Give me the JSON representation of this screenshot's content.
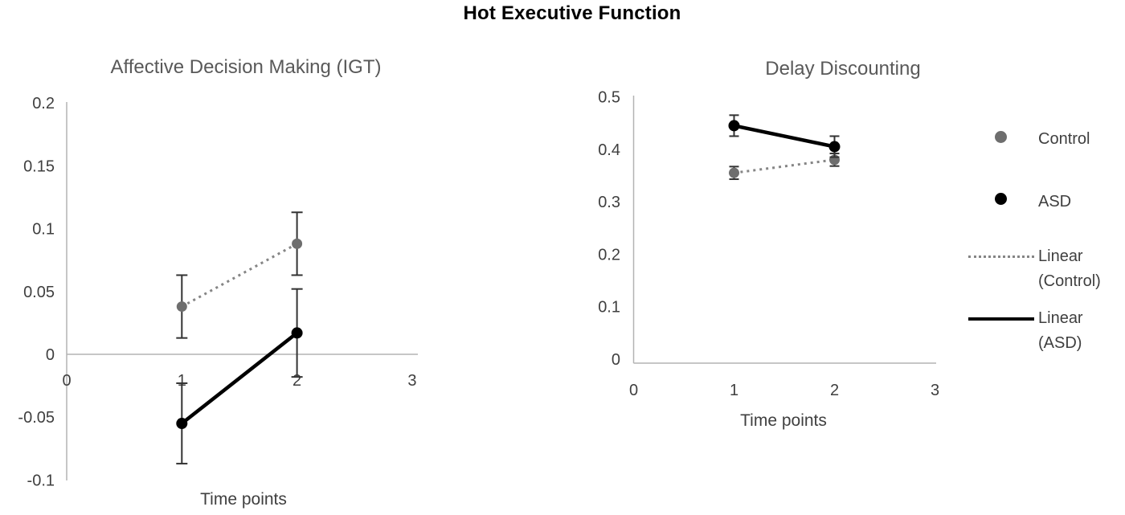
{
  "figure": {
    "title": "Hot Executive Function"
  },
  "legend": {
    "position": "right",
    "items": [
      {
        "label": "Control",
        "swatch": "dot",
        "color": "#6e6e6e"
      },
      {
        "label": "ASD",
        "swatch": "dot",
        "color": "#000000"
      },
      {
        "label": "Linear (Control)",
        "swatch": "dotted-line",
        "color": "#858585"
      },
      {
        "label": "Linear (ASD)",
        "swatch": "solid-line",
        "color": "#000000"
      }
    ]
  },
  "axis": {
    "line_color": "#b3b3b3",
    "tick_color": "#3f3f3f",
    "error_bar_color": "#333333"
  },
  "chart_data": [
    {
      "type": "line",
      "title": "Affective Decision Making (IGT)",
      "xlabel": "Time points",
      "x": [
        1,
        2
      ],
      "xtick_labels": [
        "0",
        "1",
        "2",
        "3"
      ],
      "xlim": [
        0,
        3
      ],
      "ylim": [
        -0.1,
        0.2
      ],
      "yticks": [
        0.2,
        0.15,
        0.1,
        0.05,
        0,
        -0.05,
        -0.1
      ],
      "ytick_labels": [
        "0.2",
        "0.15",
        "0.1",
        "0.05",
        "0",
        "-0.05",
        "-0.1"
      ],
      "grid": false,
      "series": [
        {
          "name": "Control",
          "values": [
            0.038,
            0.088
          ],
          "error": [
            0.025,
            0.025
          ],
          "marker": "circle",
          "marker_color": "#6e6e6e",
          "line_style": "dotted",
          "line_color": "#858585"
        },
        {
          "name": "ASD",
          "values": [
            -0.055,
            0.017
          ],
          "error": [
            0.032,
            0.035
          ],
          "marker": "circle",
          "marker_color": "#000000",
          "line_style": "solid",
          "line_color": "#000000"
        }
      ]
    },
    {
      "type": "line",
      "title": "Delay Discounting",
      "xlabel": "Time points",
      "x": [
        1,
        2
      ],
      "xtick_labels": [
        "0",
        "1",
        "2",
        "3"
      ],
      "xlim": [
        0,
        3
      ],
      "ylim": [
        0,
        0.5
      ],
      "yticks": [
        0.5,
        0.4,
        0.3,
        0.2,
        0.1,
        0
      ],
      "ytick_labels": [
        "0.5",
        "0.4",
        "0.3",
        "0.2",
        "0.1",
        "0"
      ],
      "grid": false,
      "series": [
        {
          "name": "Control",
          "values": [
            0.355,
            0.38
          ],
          "error": [
            0.012,
            0.012
          ],
          "marker": "circle",
          "marker_color": "#6e6e6e",
          "line_style": "dotted",
          "line_color": "#858585"
        },
        {
          "name": "ASD",
          "values": [
            0.445,
            0.405
          ],
          "error": [
            0.02,
            0.02
          ],
          "marker": "circle",
          "marker_color": "#000000",
          "line_style": "solid",
          "line_color": "#000000"
        }
      ]
    }
  ]
}
